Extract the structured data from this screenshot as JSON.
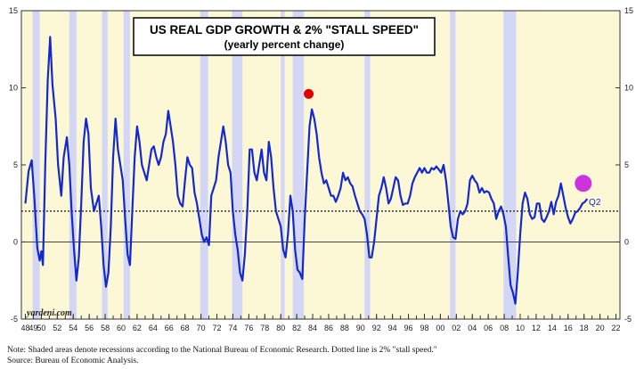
{
  "chart_data": {
    "type": "line",
    "title": "US REAL GDP GROWTH & 2% \"STALL SPEED\"",
    "subtitle": "(yearly percent change)",
    "xlim": [
      1947.5,
      2022.5
    ],
    "ylim": [
      -5,
      15
    ],
    "x_ticks": [
      "48",
      "49",
      "50",
      "52",
      "54",
      "56",
      "58",
      "60",
      "62",
      "64",
      "66",
      "68",
      "70",
      "72",
      "74",
      "76",
      "78",
      "80",
      "82",
      "84",
      "86",
      "88",
      "90",
      "92",
      "94",
      "96",
      "98",
      "00",
      "02",
      "04",
      "06",
      "08",
      "10",
      "12",
      "14",
      "16",
      "18",
      "20",
      "22"
    ],
    "x_tick_years": [
      1948,
      1949,
      1950,
      1952,
      1954,
      1956,
      1958,
      1960,
      1962,
      1964,
      1966,
      1968,
      1970,
      1972,
      1974,
      1976,
      1978,
      1980,
      1982,
      1984,
      1986,
      1988,
      1990,
      1992,
      1994,
      1996,
      1998,
      2000,
      2002,
      2004,
      2006,
      2008,
      2010,
      2012,
      2014,
      2016,
      2018,
      2020,
      2022
    ],
    "y_ticks": [
      -5,
      0,
      5,
      10,
      15
    ],
    "grid": false,
    "stall_speed": 2,
    "recessions": [
      [
        1948.9,
        1949.8
      ],
      [
        1953.5,
        1954.4
      ],
      [
        1957.6,
        1958.3
      ],
      [
        1960.3,
        1961.1
      ],
      [
        1969.9,
        1970.9
      ],
      [
        1973.9,
        1975.2
      ],
      [
        1980.0,
        1980.5
      ],
      [
        1981.5,
        1982.9
      ],
      [
        1990.5,
        1991.2
      ],
      [
        2001.2,
        2001.9
      ],
      [
        2007.9,
        2009.5
      ]
    ],
    "series": [
      {
        "values": [
          [
            1948.0,
            2.5
          ],
          [
            1948.4,
            4.6
          ],
          [
            1948.8,
            5.3
          ],
          [
            1949.1,
            3.1
          ],
          [
            1949.5,
            -0.4
          ],
          [
            1949.8,
            -1.2
          ],
          [
            1950.0,
            -0.6
          ],
          [
            1950.2,
            -1.5
          ],
          [
            1950.5,
            5.2
          ],
          [
            1950.8,
            10.5
          ],
          [
            1951.1,
            13.3
          ],
          [
            1951.4,
            10.2
          ],
          [
            1951.8,
            8.0
          ],
          [
            1952.1,
            5.0
          ],
          [
            1952.5,
            3.0
          ],
          [
            1952.8,
            5.5
          ],
          [
            1953.2,
            6.8
          ],
          [
            1953.5,
            5.0
          ],
          [
            1953.8,
            2.0
          ],
          [
            1954.1,
            -0.5
          ],
          [
            1954.4,
            -2.5
          ],
          [
            1954.7,
            -1.0
          ],
          [
            1955.0,
            2.5
          ],
          [
            1955.3,
            6.5
          ],
          [
            1955.6,
            8.0
          ],
          [
            1955.9,
            7.0
          ],
          [
            1956.2,
            3.5
          ],
          [
            1956.6,
            2.0
          ],
          [
            1956.9,
            2.5
          ],
          [
            1957.2,
            3.0
          ],
          [
            1957.5,
            1.0
          ],
          [
            1957.8,
            -1.5
          ],
          [
            1958.1,
            -2.9
          ],
          [
            1958.4,
            -2.0
          ],
          [
            1958.7,
            1.0
          ],
          [
            1959.0,
            5.5
          ],
          [
            1959.3,
            8.0
          ],
          [
            1959.6,
            6.0
          ],
          [
            1959.9,
            5.0
          ],
          [
            1960.2,
            4.0
          ],
          [
            1960.5,
            1.5
          ],
          [
            1960.8,
            -0.8
          ],
          [
            1961.1,
            -1.5
          ],
          [
            1961.4,
            2.0
          ],
          [
            1961.7,
            5.5
          ],
          [
            1962.0,
            7.5
          ],
          [
            1962.3,
            6.5
          ],
          [
            1962.6,
            5.0
          ],
          [
            1962.9,
            4.5
          ],
          [
            1963.2,
            4.0
          ],
          [
            1963.5,
            5.0
          ],
          [
            1963.8,
            6.0
          ],
          [
            1964.1,
            6.2
          ],
          [
            1964.4,
            5.5
          ],
          [
            1964.7,
            5.0
          ],
          [
            1965.0,
            5.5
          ],
          [
            1965.3,
            6.5
          ],
          [
            1965.6,
            7.0
          ],
          [
            1965.9,
            8.5
          ],
          [
            1966.2,
            7.5
          ],
          [
            1966.5,
            6.5
          ],
          [
            1966.8,
            5.0
          ],
          [
            1967.1,
            3.0
          ],
          [
            1967.4,
            2.5
          ],
          [
            1967.7,
            2.3
          ],
          [
            1968.0,
            4.0
          ],
          [
            1968.3,
            5.5
          ],
          [
            1968.6,
            5.0
          ],
          [
            1968.9,
            4.8
          ],
          [
            1969.2,
            3.2
          ],
          [
            1969.5,
            2.5
          ],
          [
            1969.8,
            1.5
          ],
          [
            1970.1,
            0.5
          ],
          [
            1970.4,
            0.0
          ],
          [
            1970.7,
            0.3
          ],
          [
            1971.0,
            -0.2
          ],
          [
            1971.3,
            3.0
          ],
          [
            1971.6,
            3.5
          ],
          [
            1971.9,
            4.0
          ],
          [
            1972.2,
            5.5
          ],
          [
            1972.5,
            6.5
          ],
          [
            1972.8,
            7.5
          ],
          [
            1973.1,
            6.5
          ],
          [
            1973.4,
            5.0
          ],
          [
            1973.7,
            4.5
          ],
          [
            1974.0,
            2.0
          ],
          [
            1974.3,
            0.5
          ],
          [
            1974.6,
            -0.5
          ],
          [
            1974.9,
            -2.0
          ],
          [
            1975.2,
            -2.5
          ],
          [
            1975.5,
            -0.8
          ],
          [
            1975.8,
            2.0
          ],
          [
            1976.1,
            6.0
          ],
          [
            1976.4,
            6.0
          ],
          [
            1976.7,
            4.5
          ],
          [
            1977.0,
            4.0
          ],
          [
            1977.3,
            5.0
          ],
          [
            1977.6,
            6.0
          ],
          [
            1977.9,
            4.5
          ],
          [
            1978.2,
            4.0
          ],
          [
            1978.5,
            6.5
          ],
          [
            1978.8,
            5.5
          ],
          [
            1979.1,
            3.5
          ],
          [
            1979.4,
            2.0
          ],
          [
            1979.7,
            1.5
          ],
          [
            1980.0,
            1.0
          ],
          [
            1980.3,
            -0.5
          ],
          [
            1980.6,
            -1.0
          ],
          [
            1980.9,
            0.5
          ],
          [
            1981.2,
            3.0
          ],
          [
            1981.5,
            2.0
          ],
          [
            1981.8,
            -0.5
          ],
          [
            1982.1,
            -1.8
          ],
          [
            1982.4,
            -2.0
          ],
          [
            1982.7,
            -2.4
          ],
          [
            1983.0,
            1.5
          ],
          [
            1983.3,
            4.5
          ],
          [
            1983.6,
            7.5
          ],
          [
            1983.9,
            8.6
          ],
          [
            1984.2,
            8.0
          ],
          [
            1984.5,
            7.0
          ],
          [
            1984.8,
            5.5
          ],
          [
            1985.1,
            4.5
          ],
          [
            1985.4,
            3.8
          ],
          [
            1985.7,
            4.0
          ],
          [
            1986.0,
            3.5
          ],
          [
            1986.3,
            3.0
          ],
          [
            1986.6,
            3.0
          ],
          [
            1986.9,
            2.6
          ],
          [
            1987.2,
            3.0
          ],
          [
            1987.5,
            3.5
          ],
          [
            1987.8,
            4.5
          ],
          [
            1988.1,
            4.0
          ],
          [
            1988.4,
            4.2
          ],
          [
            1988.7,
            3.8
          ],
          [
            1989.0,
            3.6
          ],
          [
            1989.3,
            3.0
          ],
          [
            1989.6,
            2.5
          ],
          [
            1989.9,
            2.0
          ],
          [
            1990.2,
            1.8
          ],
          [
            1990.5,
            1.5
          ],
          [
            1990.8,
            0.5
          ],
          [
            1991.1,
            -1.0
          ],
          [
            1991.4,
            -1.0
          ],
          [
            1991.7,
            0.0
          ],
          [
            1992.0,
            1.5
          ],
          [
            1992.3,
            3.0
          ],
          [
            1992.6,
            3.5
          ],
          [
            1992.9,
            4.2
          ],
          [
            1993.2,
            3.5
          ],
          [
            1993.5,
            2.5
          ],
          [
            1993.8,
            2.8
          ],
          [
            1994.1,
            3.5
          ],
          [
            1994.4,
            4.2
          ],
          [
            1994.7,
            4.0
          ],
          [
            1995.0,
            3.0
          ],
          [
            1995.3,
            2.4
          ],
          [
            1995.6,
            2.5
          ],
          [
            1995.9,
            2.5
          ],
          [
            1996.2,
            3.0
          ],
          [
            1996.5,
            3.8
          ],
          [
            1996.8,
            4.2
          ],
          [
            1997.1,
            4.5
          ],
          [
            1997.4,
            4.8
          ],
          [
            1997.7,
            4.5
          ],
          [
            1998.0,
            4.8
          ],
          [
            1998.3,
            4.5
          ],
          [
            1998.6,
            4.5
          ],
          [
            1998.9,
            4.8
          ],
          [
            1999.2,
            4.7
          ],
          [
            1999.5,
            4.9
          ],
          [
            1999.8,
            4.7
          ],
          [
            2000.1,
            4.5
          ],
          [
            2000.4,
            5.0
          ],
          [
            2000.7,
            4.0
          ],
          [
            2001.0,
            2.5
          ],
          [
            2001.3,
            1.0
          ],
          [
            2001.6,
            0.3
          ],
          [
            2001.9,
            0.2
          ],
          [
            2002.2,
            1.5
          ],
          [
            2002.5,
            2.0
          ],
          [
            2002.8,
            1.8
          ],
          [
            2003.1,
            2.0
          ],
          [
            2003.4,
            2.5
          ],
          [
            2003.7,
            4.0
          ],
          [
            2004.0,
            4.3
          ],
          [
            2004.3,
            4.0
          ],
          [
            2004.6,
            3.8
          ],
          [
            2004.9,
            3.2
          ],
          [
            2005.2,
            3.5
          ],
          [
            2005.5,
            3.2
          ],
          [
            2005.8,
            3.3
          ],
          [
            2006.1,
            3.2
          ],
          [
            2006.4,
            2.8
          ],
          [
            2006.7,
            2.5
          ],
          [
            2007.0,
            1.5
          ],
          [
            2007.3,
            2.0
          ],
          [
            2007.6,
            2.3
          ],
          [
            2007.9,
            1.8
          ],
          [
            2008.2,
            1.0
          ],
          [
            2008.5,
            -1.0
          ],
          [
            2008.8,
            -2.8
          ],
          [
            2009.1,
            -3.3
          ],
          [
            2009.4,
            -4.0
          ],
          [
            2009.7,
            -2.0
          ],
          [
            2010.0,
            0.5
          ],
          [
            2010.3,
            2.5
          ],
          [
            2010.6,
            3.2
          ],
          [
            2010.9,
            2.8
          ],
          [
            2011.2,
            1.8
          ],
          [
            2011.5,
            1.5
          ],
          [
            2011.8,
            1.6
          ],
          [
            2012.1,
            2.5
          ],
          [
            2012.4,
            2.5
          ],
          [
            2012.7,
            1.5
          ],
          [
            2013.0,
            1.3
          ],
          [
            2013.3,
            1.6
          ],
          [
            2013.6,
            2.0
          ],
          [
            2013.9,
            2.6
          ],
          [
            2014.2,
            1.8
          ],
          [
            2014.5,
            2.6
          ],
          [
            2014.8,
            3.0
          ],
          [
            2015.1,
            3.8
          ],
          [
            2015.4,
            3.0
          ],
          [
            2015.7,
            2.2
          ],
          [
            2016.0,
            1.6
          ],
          [
            2016.3,
            1.2
          ],
          [
            2016.6,
            1.5
          ],
          [
            2016.9,
            1.9
          ],
          [
            2017.2,
            2.0
          ],
          [
            2017.5,
            2.2
          ],
          [
            2017.8,
            2.5
          ],
          [
            2018.1,
            2.6
          ],
          [
            2018.4,
            2.8
          ]
        ]
      }
    ],
    "highlight_points": [
      {
        "x": 1983.5,
        "y": 9.6,
        "color": "#e00000"
      },
      {
        "x": 2017.9,
        "y": 3.8,
        "color": "#cc33dd"
      }
    ],
    "annotation": "Q2",
    "watermark": "yardeni.com"
  },
  "colors": {
    "background": "#fcf8d6",
    "recession": "#d3d7f5",
    "line": "#1428d2",
    "axis": "#333333"
  },
  "notes": {
    "line1": "Note: Shaded areas denote recessions according to the National Bureau of Economic Research. Dotted line is 2% \"stall speed.\"",
    "line2": "Source: Bureau of Economic Analysis."
  }
}
